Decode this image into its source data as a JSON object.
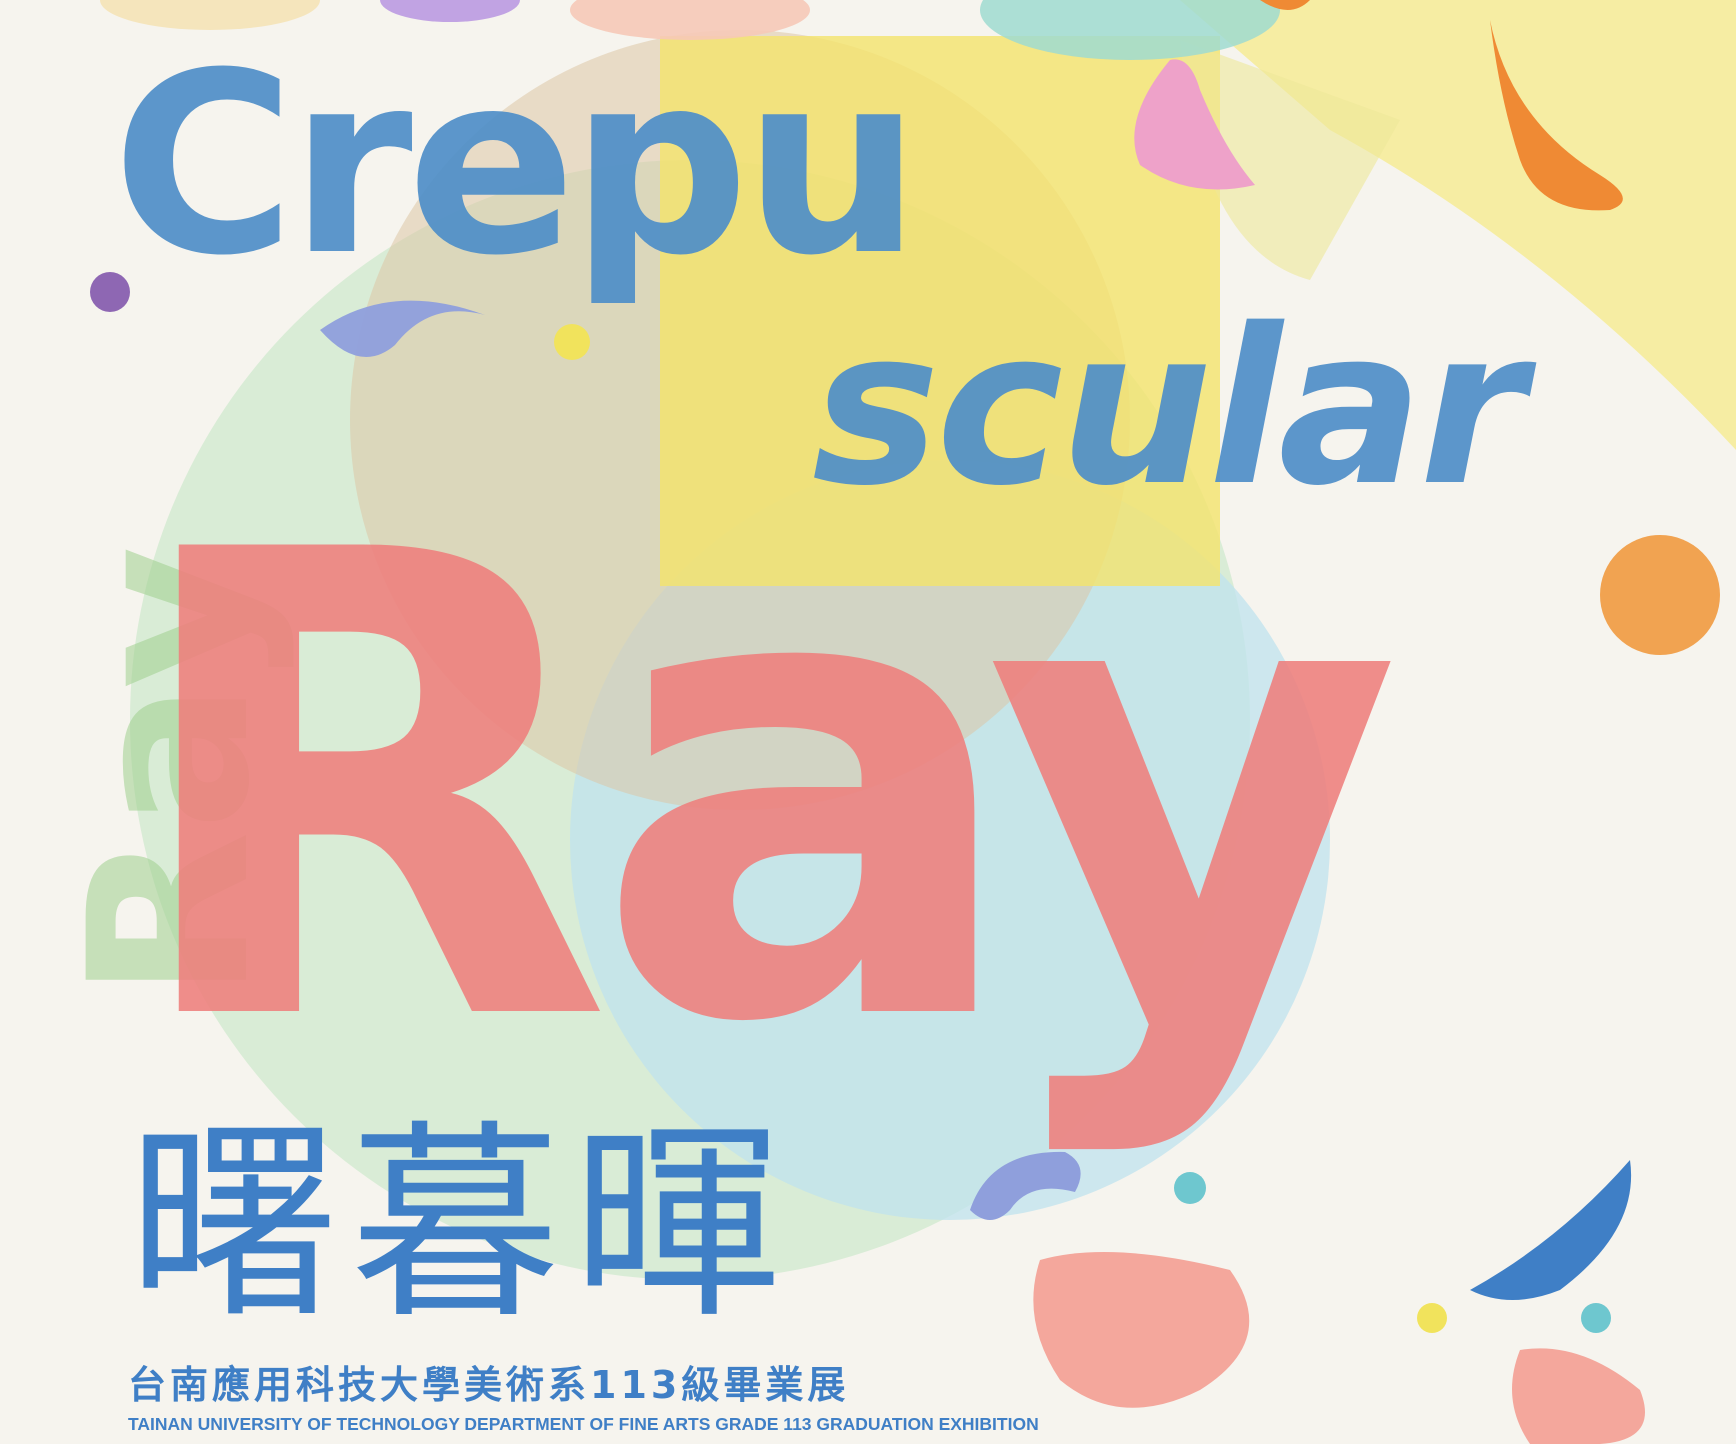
{
  "poster": {
    "word_top": "Crepu",
    "word_middle": "scular",
    "word_main": "Ray",
    "title_cn": "曙暮暉",
    "subtitle_cn": "台南應用科技大學美術系113級畢業展",
    "subtitle_en": "TAINAN UNIVERSITY OF TECHNOLOGY DEPARTMENT OF FINE ARTS GRADE 113 GRADUATION EXHIBITION"
  },
  "colors": {
    "background": "#f6f4ee",
    "blue": "#3f7fc6",
    "teal": "#8fd3d4",
    "coral": "#ef7f7d",
    "green": "#9fd08f",
    "yellow": "#f4e36b",
    "orange": "#ef8a34",
    "pink": "#eea2c9",
    "purple": "#8e67b3",
    "periwinkle": "#8f9fdc",
    "peach": "#f4a79c"
  }
}
